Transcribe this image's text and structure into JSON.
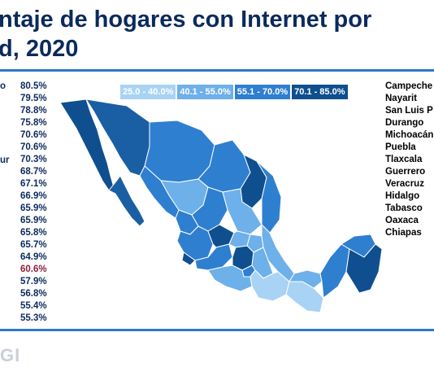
{
  "title": {
    "line1": "ntaje de hogares con Internet por",
    "line2": "d, 2020"
  },
  "left_labels": [
    "o",
    "",
    "",
    "",
    "",
    "",
    "ur"
  ],
  "percentages": [
    {
      "value": "80.5%",
      "color": "#0b2a5c"
    },
    {
      "value": "79.5%",
      "color": "#0b2a5c"
    },
    {
      "value": "78.8%",
      "color": "#0b2a5c"
    },
    {
      "value": "75.8%",
      "color": "#0b2a5c"
    },
    {
      "value": "70.6%",
      "color": "#0b2a5c"
    },
    {
      "value": "70.6%",
      "color": "#0b2a5c"
    },
    {
      "value": "70.3%",
      "color": "#0b2a5c"
    },
    {
      "value": "68.7%",
      "color": "#0b2a5c"
    },
    {
      "value": "67.1%",
      "color": "#0b2a5c"
    },
    {
      "value": "66.9%",
      "color": "#0b2a5c"
    },
    {
      "value": "65.9%",
      "color": "#0b2a5c"
    },
    {
      "value": "65.9%",
      "color": "#0b2a5c"
    },
    {
      "value": "65.8%",
      "color": "#0b2a5c"
    },
    {
      "value": "65.7%",
      "color": "#0b2a5c"
    },
    {
      "value": "64.9%",
      "color": "#0b2a5c"
    },
    {
      "value": "60.6%",
      "color": "#8b1f3a"
    },
    {
      "value": "57.9%",
      "color": "#0b2a5c"
    },
    {
      "value": "56.8%",
      "color": "#0b2a5c"
    },
    {
      "value": "55.4%",
      "color": "#0b2a5c"
    },
    {
      "value": "55.3%",
      "color": "#0b2a5c"
    }
  ],
  "states_right": [
    "Campeche",
    "Nayarit",
    "San Luis P",
    "Durango",
    "Michoacán",
    "Puebla",
    "Tlaxcala",
    "Guerrero",
    "Veracruz",
    "Hidalgo",
    "Tabasco",
    "Oaxaca",
    "Chiapas"
  ],
  "legend": [
    {
      "label": "25.0 - 40.0%",
      "color": "#a9d3f5"
    },
    {
      "label": "40.1 - 55.0%",
      "color": "#6eb0ea"
    },
    {
      "label": "55.1 - 70.0%",
      "color": "#2f7fd0"
    },
    {
      "label": "70.1 - 85.0%",
      "color": "#0f4f8f"
    }
  ],
  "logo": "GI"
}
